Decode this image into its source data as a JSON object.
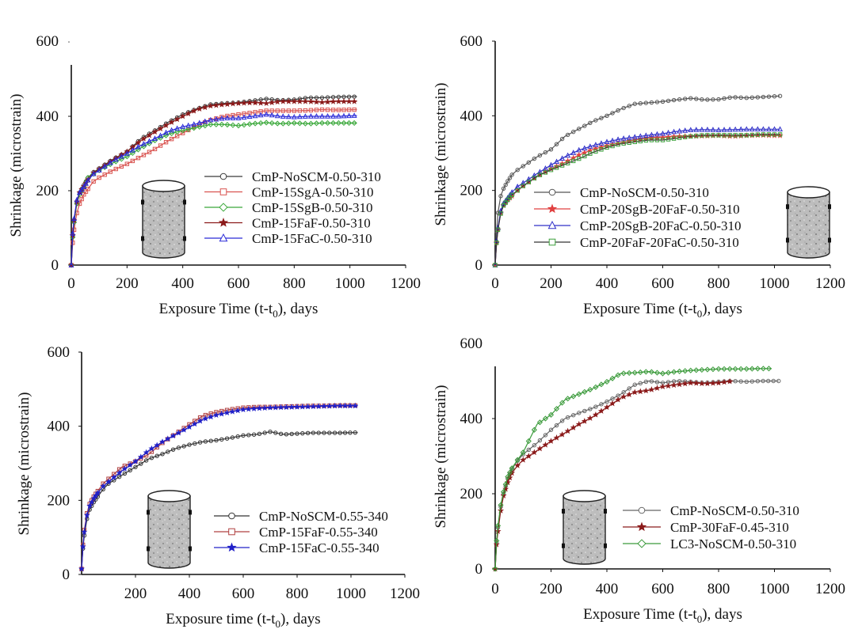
{
  "chart_data": [
    {
      "type": "line",
      "panel": "top-left",
      "title": "",
      "xlabel": "Exposure Time (t-t0), days",
      "xlabel_main": "Exposure Time (t-t",
      "xlabel_sub": "0",
      "xlabel_tail": "), days",
      "ylabel": "Shrinkage (microstrain)",
      "xlim": [
        0,
        1200
      ],
      "ylim": [
        0,
        600
      ],
      "xticks": [
        "0",
        "200",
        "400",
        "600",
        "800",
        "1000",
        "1200"
      ],
      "yticks": [
        "0",
        "200",
        "400",
        "600"
      ],
      "grid": false,
      "legend_position": "bottom-right",
      "specimen_icon": "cylinder-specimen",
      "series": [
        {
          "name": "CmP-NoSCM-0.50-310",
          "color": "#3a3a3a",
          "marker": "circle",
          "x": [
            0,
            5,
            10,
            20,
            30,
            45,
            60,
            80,
            100,
            150,
            200,
            250,
            300,
            350,
            400,
            450,
            500,
            550,
            600,
            650,
            700,
            750,
            800,
            850,
            900,
            950,
            1025
          ],
          "y": [
            0,
            80,
            120,
            170,
            195,
            215,
            235,
            250,
            260,
            285,
            305,
            340,
            362,
            385,
            405,
            420,
            432,
            435,
            437,
            442,
            447,
            443,
            445,
            450,
            450,
            452,
            453
          ]
        },
        {
          "name": "CmP-15SgA-0.50-310",
          "color": "#d9534f",
          "marker": "square",
          "x": [
            0,
            5,
            10,
            20,
            30,
            45,
            60,
            80,
            100,
            150,
            200,
            250,
            300,
            350,
            400,
            450,
            500,
            550,
            600,
            650,
            700,
            750,
            800,
            850,
            900,
            950,
            1025
          ],
          "y": [
            0,
            60,
            95,
            140,
            165,
            190,
            205,
            225,
            235,
            255,
            272,
            292,
            312,
            335,
            355,
            375,
            390,
            400,
            405,
            410,
            415,
            415,
            415,
            416,
            418,
            417,
            418
          ]
        },
        {
          "name": "CmP-15SgB-0.50-310",
          "color": "#3aa83a",
          "marker": "diamond",
          "x": [
            0,
            5,
            10,
            20,
            30,
            45,
            60,
            80,
            100,
            150,
            200,
            250,
            300,
            350,
            400,
            450,
            500,
            550,
            600,
            650,
            700,
            750,
            800,
            850,
            900,
            950,
            1025
          ],
          "y": [
            0,
            75,
            115,
            165,
            190,
            210,
            235,
            245,
            255,
            275,
            292,
            315,
            335,
            352,
            362,
            370,
            378,
            378,
            375,
            380,
            383,
            380,
            382,
            380,
            382,
            382,
            382
          ]
        },
        {
          "name": "CmP-15FaF-0.50-310",
          "color": "#8b1a1a",
          "marker": "star",
          "x": [
            0,
            5,
            10,
            20,
            30,
            45,
            60,
            80,
            100,
            150,
            200,
            250,
            300,
            350,
            400,
            450,
            500,
            550,
            600,
            650,
            700,
            750,
            800,
            850,
            900,
            950,
            1025
          ],
          "y": [
            0,
            80,
            120,
            170,
            195,
            212,
            230,
            248,
            258,
            283,
            305,
            335,
            358,
            380,
            400,
            418,
            428,
            432,
            435,
            437,
            435,
            440,
            440,
            440,
            438,
            440,
            440
          ]
        },
        {
          "name": "CmP-15FaC-0.50-310",
          "color": "#2a2ad8",
          "marker": "triangle",
          "x": [
            0,
            5,
            10,
            20,
            30,
            45,
            60,
            80,
            100,
            150,
            200,
            250,
            300,
            350,
            400,
            450,
            500,
            550,
            600,
            650,
            700,
            750,
            800,
            850,
            900,
            950,
            1025
          ],
          "y": [
            0,
            85,
            125,
            175,
            195,
            210,
            228,
            245,
            255,
            280,
            300,
            322,
            340,
            360,
            372,
            380,
            390,
            395,
            395,
            400,
            405,
            400,
            398,
            400,
            400,
            400,
            402
          ]
        }
      ]
    },
    {
      "type": "line",
      "panel": "top-right",
      "title": "",
      "xlabel": "Exposure Time (t-t0), days",
      "xlabel_main": "Exposure Time (t-t",
      "xlabel_sub": "0",
      "xlabel_tail": "), days",
      "ylabel": "Shrinkage (microstrain)",
      "xlim": [
        0,
        1200
      ],
      "ylim": [
        0,
        600
      ],
      "xticks": [
        "0",
        "200",
        "400",
        "600",
        "800",
        "1000",
        "1200"
      ],
      "yticks": [
        "0",
        "200",
        "400",
        "600"
      ],
      "grid": false,
      "legend_position": "bottom-center",
      "specimen_icon": "cylinder-specimen",
      "series": [
        {
          "name": "CmP-NoSCM-0.50-310",
          "color": "#555555",
          "marker": "circle",
          "x": [
            0,
            5,
            10,
            20,
            30,
            45,
            60,
            80,
            100,
            150,
            200,
            250,
            300,
            350,
            400,
            450,
            500,
            550,
            600,
            650,
            700,
            750,
            800,
            850,
            900,
            950,
            1020
          ],
          "y": [
            0,
            90,
            140,
            185,
            205,
            225,
            242,
            255,
            265,
            290,
            310,
            345,
            365,
            385,
            400,
            418,
            432,
            435,
            438,
            443,
            447,
            443,
            444,
            450,
            448,
            450,
            453
          ]
        },
        {
          "name": "CmP-20SgB-20FaF-0.50-310",
          "color": "#e04040",
          "marker": "star",
          "x": [
            0,
            5,
            10,
            20,
            30,
            45,
            60,
            80,
            100,
            150,
            200,
            250,
            300,
            350,
            400,
            450,
            500,
            550,
            600,
            650,
            700,
            750,
            800,
            850,
            900,
            950,
            1020
          ],
          "y": [
            0,
            60,
            95,
            140,
            160,
            175,
            185,
            200,
            212,
            238,
            258,
            275,
            295,
            310,
            320,
            328,
            335,
            340,
            342,
            345,
            345,
            346,
            347,
            345,
            347,
            348,
            347
          ]
        },
        {
          "name": "CmP-20SgB-20FaC-0.50-310",
          "color": "#3030c8",
          "marker": "triangle",
          "x": [
            0,
            5,
            10,
            20,
            30,
            45,
            60,
            80,
            100,
            150,
            200,
            250,
            300,
            350,
            400,
            450,
            500,
            550,
            600,
            650,
            700,
            750,
            800,
            850,
            900,
            950,
            1020
          ],
          "y": [
            0,
            65,
            100,
            145,
            165,
            180,
            195,
            210,
            220,
            245,
            268,
            290,
            308,
            320,
            330,
            338,
            343,
            348,
            352,
            358,
            362,
            363,
            362,
            363,
            364,
            364,
            364
          ]
        },
        {
          "name": "CmP-20FaF-20FaC-0.50-310",
          "color": "#333333",
          "marker": "square",
          "marker_color": "#3aa03a",
          "x": [
            0,
            5,
            10,
            20,
            30,
            45,
            60,
            80,
            100,
            150,
            200,
            250,
            300,
            350,
            400,
            450,
            500,
            550,
            600,
            650,
            700,
            750,
            800,
            850,
            900,
            950,
            1020
          ],
          "y": [
            0,
            60,
            95,
            138,
            160,
            175,
            188,
            200,
            212,
            238,
            255,
            270,
            285,
            302,
            315,
            325,
            330,
            335,
            335,
            340,
            345,
            348,
            348,
            348,
            348,
            350,
            350
          ]
        }
      ]
    },
    {
      "type": "line",
      "panel": "bottom-left",
      "title": "",
      "xlabel": "Exposure time (t-t0), days",
      "xlabel_main": "Exposure time (t-t",
      "xlabel_sub": "0",
      "xlabel_tail": "), days",
      "ylabel": "Shrinkage (microstrain)",
      "xlim": [
        0,
        1200
      ],
      "ylim": [
        0,
        600
      ],
      "xticks": [
        "",
        "200",
        "400",
        "600",
        "800",
        "1000",
        "1200"
      ],
      "yticks": [
        "0",
        "200",
        "400",
        "600"
      ],
      "grid": false,
      "legend_position": "bottom-right",
      "specimen_icon": "cylinder-specimen",
      "series": [
        {
          "name": "CmP-NoSCM-0.55-340",
          "color": "#333333",
          "marker": "circle",
          "x": [
            0,
            5,
            10,
            20,
            30,
            45,
            60,
            80,
            100,
            150,
            200,
            250,
            300,
            350,
            400,
            450,
            500,
            550,
            600,
            650,
            700,
            750,
            800,
            850,
            900,
            950,
            1025
          ],
          "y": [
            15,
            70,
            105,
            150,
            175,
            195,
            210,
            230,
            245,
            268,
            290,
            312,
            325,
            340,
            350,
            358,
            362,
            368,
            375,
            378,
            385,
            378,
            380,
            382,
            382,
            382,
            383
          ]
        },
        {
          "name": "CmP-15FaF-0.55-340",
          "color": "#b04040",
          "marker": "square",
          "x": [
            0,
            5,
            10,
            20,
            30,
            45,
            60,
            80,
            100,
            150,
            200,
            250,
            300,
            350,
            400,
            450,
            500,
            550,
            600,
            650,
            700,
            750,
            800,
            850,
            900,
            950,
            1025
          ],
          "y": [
            15,
            80,
            120,
            165,
            190,
            210,
            225,
            245,
            258,
            290,
            305,
            325,
            355,
            380,
            405,
            428,
            438,
            445,
            450,
            452,
            452,
            453,
            454,
            455,
            455,
            456,
            456
          ]
        },
        {
          "name": "CmP-15FaC-0.55-340",
          "color": "#2020c8",
          "marker": "star",
          "x": [
            0,
            5,
            10,
            20,
            30,
            45,
            60,
            80,
            100,
            150,
            200,
            250,
            300,
            350,
            400,
            450,
            500,
            550,
            600,
            650,
            700,
            750,
            800,
            850,
            900,
            950,
            1025
          ],
          "y": [
            15,
            75,
            115,
            160,
            185,
            205,
            220,
            238,
            250,
            280,
            305,
            335,
            358,
            378,
            398,
            418,
            430,
            438,
            445,
            448,
            450,
            451,
            452,
            453,
            454,
            455,
            455
          ]
        }
      ]
    },
    {
      "type": "line",
      "panel": "bottom-right",
      "title": "",
      "xlabel": "Exposure Time (t-t0), days",
      "xlabel_main": "Exposure Time (t-t",
      "xlabel_sub": "0",
      "xlabel_tail": "), days",
      "ylabel": "Shrinkage (microstrain)",
      "xlim": [
        0,
        1200
      ],
      "ylim": [
        0,
        600
      ],
      "xticks": [
        "0",
        "200",
        "400",
        "600",
        "800",
        "1000",
        "1200"
      ],
      "yticks": [
        "0",
        "200",
        "400",
        "600"
      ],
      "grid": false,
      "legend_position": "bottom-right",
      "specimen_icon": "cylinder-specimen",
      "series": [
        {
          "name": "CmP-NoSCM-0.50-310",
          "color": "#666666",
          "marker": "circle",
          "x": [
            0,
            5,
            10,
            20,
            30,
            45,
            60,
            80,
            100,
            150,
            200,
            250,
            300,
            350,
            400,
            450,
            500,
            550,
            600,
            650,
            700,
            750,
            800,
            850,
            900,
            950,
            1015
          ],
          "y": [
            0,
            70,
            110,
            165,
            200,
            240,
            265,
            288,
            305,
            335,
            370,
            400,
            415,
            428,
            445,
            465,
            490,
            500,
            495,
            500,
            498,
            495,
            498,
            500,
            498,
            500,
            500
          ]
        },
        {
          "name": "CmP-30FaF-0.45-310",
          "color": "#8b1a1a",
          "marker": "star",
          "x": [
            0,
            5,
            10,
            20,
            30,
            45,
            60,
            80,
            100,
            150,
            200,
            250,
            300,
            350,
            400,
            450,
            500,
            550,
            600,
            650,
            700,
            750,
            800,
            850
          ],
          "y": [
            0,
            65,
            100,
            155,
            195,
            230,
            255,
            275,
            290,
            315,
            340,
            362,
            385,
            405,
            430,
            455,
            470,
            475,
            485,
            490,
            495,
            493,
            495,
            500
          ]
        },
        {
          "name": "LC3-NoSCM-0.50-310",
          "color": "#3a9a3a",
          "marker": "diamond",
          "x": [
            0,
            5,
            10,
            20,
            30,
            45,
            60,
            80,
            100,
            150,
            200,
            250,
            300,
            350,
            400,
            450,
            500,
            550,
            600,
            650,
            700,
            750,
            800,
            850,
            900,
            950,
            990
          ],
          "y": [
            0,
            75,
            115,
            170,
            205,
            245,
            268,
            290,
            310,
            385,
            410,
            450,
            465,
            480,
            498,
            520,
            522,
            525,
            520,
            525,
            528,
            530,
            532,
            532,
            532,
            533,
            533
          ]
        }
      ]
    }
  ]
}
